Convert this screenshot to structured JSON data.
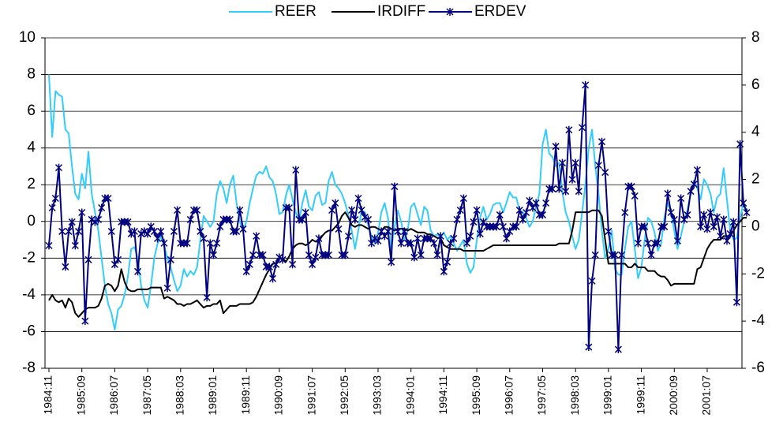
{
  "chart_data": {
    "type": "line",
    "categories": [
      "1984:11",
      null,
      null,
      null,
      null,
      null,
      null,
      null,
      null,
      null,
      "1985:09",
      null,
      null,
      null,
      null,
      null,
      null,
      null,
      null,
      null,
      "1986:07",
      null,
      null,
      null,
      null,
      null,
      null,
      null,
      null,
      null,
      "1987:05",
      null,
      null,
      null,
      null,
      null,
      null,
      null,
      null,
      null,
      "1988:03",
      null,
      null,
      null,
      null,
      null,
      null,
      null,
      null,
      null,
      "1989:01",
      null,
      null,
      null,
      null,
      null,
      null,
      null,
      null,
      null,
      "1989:11",
      null,
      null,
      null,
      null,
      null,
      null,
      null,
      null,
      null,
      "1990:09",
      null,
      null,
      null,
      null,
      null,
      null,
      null,
      null,
      null,
      "1991:07",
      null,
      null,
      null,
      null,
      null,
      null,
      null,
      null,
      null,
      "1992:05",
      null,
      null,
      null,
      null,
      null,
      null,
      null,
      null,
      null,
      "1993:03",
      null,
      null,
      null,
      null,
      null,
      null,
      null,
      null,
      null,
      "1994:01",
      null,
      null,
      null,
      null,
      null,
      null,
      null,
      null,
      null,
      "1994:11",
      null,
      null,
      null,
      null,
      null,
      null,
      null,
      null,
      null,
      "1995:09",
      null,
      null,
      null,
      null,
      null,
      null,
      null,
      null,
      null,
      "1996:07",
      null,
      null,
      null,
      null,
      null,
      null,
      null,
      null,
      null,
      "1997:05",
      null,
      null,
      null,
      null,
      null,
      null,
      null,
      null,
      null,
      "1998:03",
      null,
      null,
      null,
      null,
      null,
      null,
      null,
      null,
      null,
      "1999:01",
      null,
      null,
      null,
      null,
      null,
      null,
      null,
      null,
      null,
      "1999:11",
      null,
      null,
      null,
      null,
      null,
      null,
      null,
      null,
      null,
      "2000:09",
      null,
      null,
      null,
      null,
      null,
      null,
      null,
      null,
      null,
      "2001:07",
      null,
      null,
      null,
      null,
      null,
      null,
      null,
      null,
      null,
      null,
      null,
      null
    ],
    "series": [
      {
        "name": "REER",
        "color": "#33ccff",
        "marker": false,
        "values": [
          8,
          4.6,
          7.1,
          6.9,
          6.8,
          5,
          4.8,
          3,
          1.5,
          1.2,
          2.6,
          1.8,
          3.8,
          1.5,
          0.5,
          -0.5,
          -2,
          -3.5,
          -4.5,
          -5,
          -5.9,
          -4.8,
          -4.6,
          -4,
          -3,
          -1.5,
          -1.4,
          -2,
          -3.5,
          -4.3,
          -4.7,
          -3.5,
          -2,
          -1.2,
          -0.8,
          -1.3,
          -2,
          -2.5,
          -3.2,
          -3.8,
          -3.5,
          -2.6,
          -3,
          -2.7,
          -2.9,
          -2.5,
          -1,
          0.3,
          0,
          -0.3,
          0,
          1.5,
          2.2,
          1.8,
          1,
          2,
          2.5,
          1,
          0,
          -0.5,
          0,
          1,
          1.8,
          2.5,
          2.7,
          2.6,
          3,
          2.4,
          2.2,
          1.5,
          0.4,
          0.5,
          1.4,
          2,
          1.2,
          0.5,
          0,
          1,
          1.7,
          0.8,
          0.6,
          1.4,
          1.6,
          0.9,
          1,
          2.2,
          2.7,
          2,
          1.8,
          1.5,
          1,
          0.3,
          -0.5,
          -1.5,
          -0.5,
          0.6,
          0.5,
          -0.2,
          -0.8,
          -1.2,
          -0.6,
          0.5,
          1,
          0.2,
          -1.5,
          -0.3,
          0.6,
          0,
          -1,
          -0.5,
          0.8,
          1,
          0.4,
          -0.2,
          0.8,
          0.6,
          -0.5,
          -0.8,
          -0.7,
          -0.9,
          -0.6,
          -1,
          -0.8,
          -1.2,
          -1.6,
          -1.3,
          -1,
          -2.3,
          -2.8,
          -2.5,
          -1,
          0.2,
          0.8,
          0.1,
          0.4,
          0.9,
          1,
          1,
          0.5,
          1,
          1.6,
          1.3,
          1.3,
          0.6,
          0.5,
          0.2,
          -0.3,
          0,
          0.8,
          1.5,
          4.2,
          5,
          3.7,
          3.5,
          3,
          3.2,
          1.6,
          0.5,
          0,
          -0.8,
          -1.5,
          -1,
          0.5,
          2,
          4,
          5,
          3,
          1.5,
          -0.5,
          -2,
          -1.5,
          -0.5,
          -2.6,
          -2.9,
          -2.9,
          -1.5,
          -0.3,
          0,
          -1.5,
          -3.1,
          -2.5,
          -1,
          0.2,
          0,
          -0.6,
          -1.6,
          -1.2,
          0.2,
          1,
          0.5,
          -0.5,
          -1.5,
          -0.8,
          0,
          0.6,
          1.5,
          2.2,
          1.8,
          1.2,
          2.3,
          2,
          1.5,
          0.5,
          1.3,
          1.5,
          2.9,
          1.2,
          -0.5,
          -1,
          -0.9,
          0.2,
          1,
          0.6
        ]
      },
      {
        "name": "IRDIFF",
        "color": "#000000",
        "marker": false,
        "values": [
          -4.3,
          -4,
          -4.3,
          -4.4,
          -4.3,
          -4.7,
          -4.2,
          -4.4,
          -5,
          -5.2,
          -5,
          -4.8,
          -4.7,
          -4.7,
          -4.7,
          -4.6,
          -4.2,
          -3.5,
          -3.4,
          -3.5,
          -3.8,
          -3.5,
          -2.6,
          -3.3,
          -3.7,
          -3.8,
          -3.8,
          -3.7,
          -3.7,
          -3.7,
          -3.7,
          -3.6,
          -3.6,
          -3.6,
          -3.6,
          -4.2,
          -4.1,
          -4.2,
          -4.3,
          -4.5,
          -4.5,
          -4.6,
          -4.5,
          -4.5,
          -4.4,
          -4.3,
          -4.5,
          -4.7,
          -4.6,
          -4.6,
          -4.5,
          -4.5,
          -4.3,
          -5,
          -4.8,
          -4.6,
          -4.6,
          -4.6,
          -4.5,
          -4.5,
          -4.5,
          -4.5,
          -4.4,
          -4.1,
          -3.7,
          -3.3,
          -2.9,
          -2.6,
          -2.3,
          -2.3,
          -2,
          -2,
          -2.2,
          -1.9,
          -1.5,
          -1.3,
          -1.2,
          -1.2,
          -1.3,
          -1.2,
          -1,
          -1.1,
          -1.1,
          -0.8,
          -0.6,
          -0.5,
          -0.5,
          -0.3,
          -0.1,
          0.3,
          0.5,
          0.2,
          -0.2,
          -0.3,
          -0.2,
          -0.2,
          -0.3,
          -0.4,
          -0.3,
          -0.3,
          -0.4,
          -0.5,
          -0.3,
          -0.3,
          -0.4,
          -0.5,
          -0.4,
          -0.4,
          -0.4,
          -0.5,
          -0.4,
          -0.5,
          -0.6,
          -0.6,
          -0.6,
          -0.7,
          -0.7,
          -0.8,
          -0.9,
          -0.9,
          -1.3,
          -1.4,
          -1.5,
          -1.5,
          -1.5,
          -1.5,
          -1.6,
          -1.6,
          -1.6,
          -1.6,
          -1.6,
          -1.6,
          -1.6,
          -1.5,
          -1.4,
          -1.3,
          -1.3,
          -1.3,
          -1.3,
          -1.3,
          -1.3,
          -1.3,
          -1.3,
          -1.3,
          -1.3,
          -1.3,
          -1.3,
          -1.3,
          -1.3,
          -1.3,
          -1.3,
          -1.3,
          -1.3,
          -1.3,
          -1.3,
          -1.2,
          -1.2,
          -1.2,
          -1.2,
          -0.5,
          0.5,
          0.5,
          0.5,
          0.5,
          0.5,
          0.6,
          0.6,
          0.6,
          0.3,
          -1,
          -2.3,
          -2.3,
          -2.3,
          -2.3,
          -2.3,
          -2.3,
          -2.5,
          -2.5,
          -2.3,
          -2.5,
          -2.5,
          -2.5,
          -2.7,
          -2.7,
          -2.7,
          -2.9,
          -3,
          -3,
          -3.2,
          -3.5,
          -3.4,
          -3.4,
          -3.4,
          -3.4,
          -3.4,
          -3.4,
          -3.4,
          -2.6,
          -2.5,
          -2,
          -1.5,
          -1.2,
          -1,
          -1,
          -1,
          -0.8,
          -0.8,
          -0.8,
          -0.5,
          -0.2,
          0,
          0.2,
          0.2
        ]
      },
      {
        "name": "ERDEV",
        "color": "#000080",
        "marker": true,
        "axis": "y2",
        "values": [
          -0.8,
          0.8,
          1.2,
          2.5,
          -0.2,
          -1.7,
          -0.2,
          0.2,
          -0.8,
          -0.2,
          0.6,
          -4,
          -1.4,
          0.3,
          0.2,
          0.3,
          0.8,
          1.2,
          1.2,
          -0.2,
          -1.6,
          -1.4,
          0.2,
          0.2,
          0.2,
          -0.3,
          -0.2,
          -1.9,
          -0.3,
          -0.2,
          -0.3,
          0,
          -0.2,
          -0.5,
          -0.2,
          -0.7,
          -2.6,
          -1.4,
          -0.2,
          0.7,
          -0.7,
          -0.7,
          -0.7,
          0.3,
          0.7,
          0.7,
          -0.2,
          -0.5,
          -3,
          -0.7,
          -1.2,
          -0.7,
          0,
          0.3,
          0.3,
          0.3,
          -0.2,
          -0.2,
          0.7,
          -0.1,
          -1.9,
          -1.6,
          -1.2,
          -0.4,
          -1.2,
          -1.2,
          -1.7,
          -1.7,
          -2.2,
          -1.6,
          -1.3,
          -1.4,
          0.8,
          0.8,
          -1.6,
          2.4,
          0.3,
          0.3,
          0.6,
          -1.2,
          -1.6,
          -1.3,
          -0.5,
          -1.2,
          -1.2,
          -1.2,
          0.7,
          1,
          -0.1,
          -1.2,
          -1.2,
          -0.4,
          0.7,
          0.3,
          1.2,
          0.7,
          0.4,
          0.3,
          -0.7,
          -0.5,
          -0.6,
          -0.2,
          -0.4,
          -0.2,
          -1.5,
          1.7,
          -0.2,
          -0.7,
          -0.2,
          -0.7,
          -0.7,
          -1.3,
          -0.5,
          -1.2,
          -0.5,
          -0.5,
          -0.5,
          -0.7,
          -1.2,
          -0.4,
          -1.9,
          -1.5,
          -0.7,
          -0.5,
          0.3,
          0.7,
          1.2,
          -0.7,
          -0.4,
          0.2,
          0.7,
          -0.3,
          0.2,
          0,
          0,
          0,
          0,
          0.5,
          0,
          -0.5,
          -0.2,
          0,
          0,
          0.7,
          0.3,
          0.6,
          1.1,
          0.8,
          1,
          0.5,
          0.5,
          1,
          1.6,
          1.6,
          3.4,
          1.6,
          2.7,
          1.5,
          4.1,
          2,
          2.7,
          1.5,
          4.2,
          6,
          -5.1,
          -2.3,
          -1.2,
          2.6,
          3.6,
          2.3,
          -0.2,
          -1.2,
          -1.2,
          -5.2,
          -1.2,
          0.6,
          1.7,
          1.7,
          1.3,
          -0.7,
          0,
          0,
          -0.7,
          -1.2,
          -0.7,
          -0.7,
          0,
          0,
          1.4,
          0.6,
          0.3,
          -0.6,
          1.2,
          0.3,
          0.5,
          1.5,
          1.8,
          2.4,
          0,
          0.5,
          -0.1,
          0.6,
          0,
          0.4,
          -0.4,
          0.3,
          -0.6,
          -0.3,
          0.2,
          -3.2,
          3.5,
          1,
          0.6
        ]
      }
    ],
    "ylim": [
      -8,
      10
    ],
    "yticks": [
      -8,
      -6,
      -4,
      -2,
      0,
      2,
      4,
      6,
      8,
      10
    ],
    "y2lim": [
      -6,
      8
    ],
    "y2ticks": [
      -6,
      -4,
      -2,
      0,
      2,
      4,
      6,
      8
    ],
    "grid": true,
    "legend": "top"
  }
}
